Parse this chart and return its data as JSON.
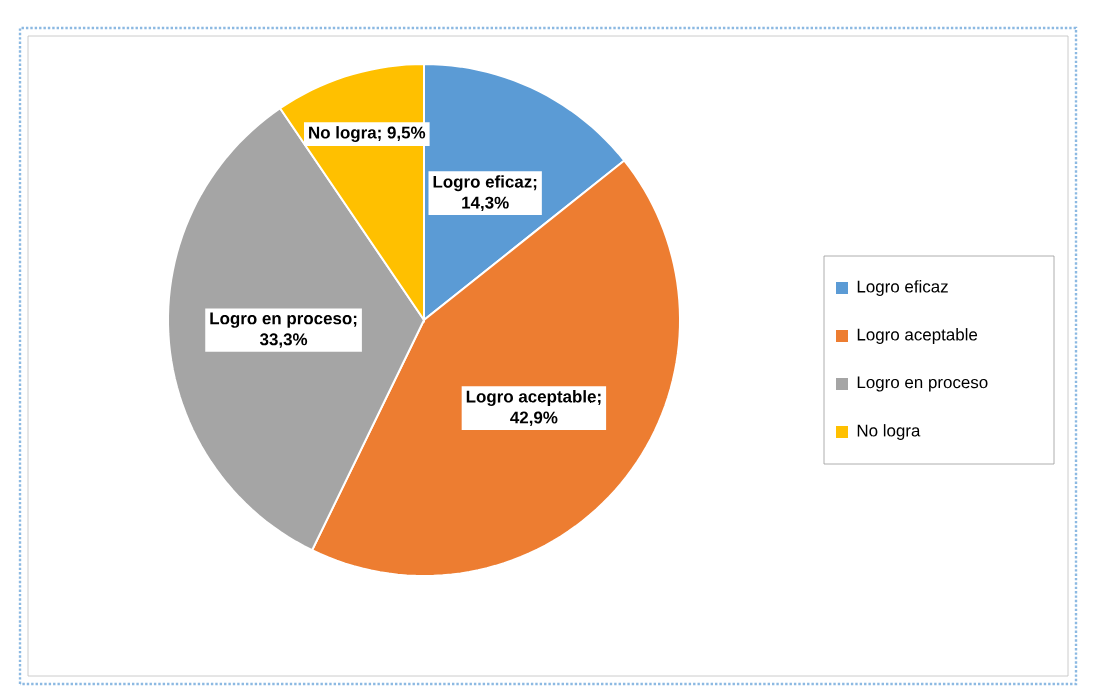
{
  "chart_data": {
    "type": "pie",
    "categories": [
      "Logro eficaz",
      "Logro aceptable",
      "Logro en proceso",
      "No logra"
    ],
    "values": [
      14.3,
      42.9,
      33.3,
      9.5
    ],
    "colors": [
      "#5b9bd5",
      "#ed7d31",
      "#a5a5a5",
      "#ffc000"
    ],
    "value_labels": [
      "Logro eficaz; 14,3%",
      "Logro aceptable; 42,9%",
      "Logro en proceso; 33,3%",
      "No logra; 9,5%"
    ],
    "legend": "right"
  }
}
